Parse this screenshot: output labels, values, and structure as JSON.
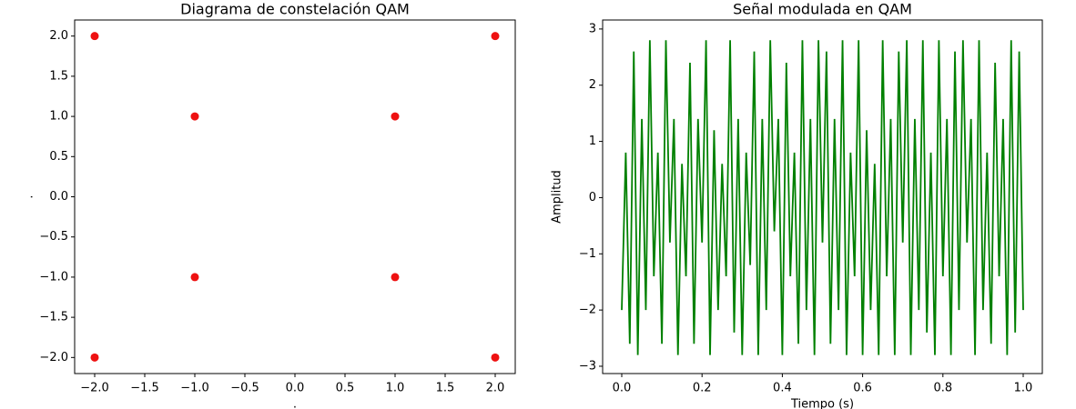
{
  "chart_data": [
    {
      "type": "scatter",
      "title": "Diagrama de constelación QAM",
      "x_label": ".",
      "y_label": ".",
      "x": [
        -2,
        -2,
        -1,
        -1,
        1,
        1,
        2,
        2
      ],
      "values": [
        2,
        -2,
        1,
        -1,
        1,
        -1,
        2,
        -2
      ],
      "color": "#ee1111",
      "xlim": [
        -2.2,
        2.2
      ],
      "ylim": [
        -2.2,
        2.2
      ],
      "xticks": [
        {
          "value": -2,
          "label": "−2.0"
        },
        {
          "value": -1.5,
          "label": "−1.5"
        },
        {
          "value": -1,
          "label": "−1.0"
        },
        {
          "value": -0.5,
          "label": "−0.5"
        },
        {
          "value": 0,
          "label": "0.0"
        },
        0.5,
        {
          "value": 1,
          "label": "1.0"
        },
        1.5,
        {
          "value": 2,
          "label": "2.0"
        }
      ],
      "yticks": [
        {
          "value": -2,
          "label": "−2.0"
        },
        {
          "value": -1.5,
          "label": "−1.5"
        },
        {
          "value": -1,
          "label": "−1.0"
        },
        {
          "value": -0.5,
          "label": "−0.5"
        },
        {
          "value": 0,
          "label": "0.0"
        },
        0.5,
        {
          "value": 1,
          "label": "1.0"
        },
        1.5,
        {
          "value": 2,
          "label": "2.0"
        }
      ]
    },
    {
      "type": "line",
      "title": "Señal modulada en QAM",
      "x_label": "Tiempo (s)",
      "y_label": "Amplitud",
      "color": "#008000",
      "x": [
        0,
        0.01,
        0.02,
        0.03,
        0.04,
        0.05,
        0.06,
        0.07,
        0.08,
        0.09,
        0.1,
        0.11,
        0.12,
        0.13,
        0.14,
        0.15,
        0.16,
        0.17,
        0.18,
        0.19,
        0.2,
        0.21,
        0.22,
        0.23,
        0.24,
        0.25,
        0.26,
        0.27,
        0.28,
        0.29,
        0.3,
        0.31,
        0.32,
        0.33,
        0.34,
        0.35,
        0.36,
        0.37,
        0.38,
        0.39,
        0.4,
        0.41,
        0.42,
        0.43,
        0.44,
        0.45,
        0.46,
        0.47,
        0.48,
        0.49,
        0.5,
        0.51,
        0.52,
        0.53,
        0.54,
        0.55,
        0.56,
        0.57,
        0.58,
        0.59,
        0.6,
        0.61,
        0.62,
        0.63,
        0.64,
        0.65,
        0.66,
        0.67,
        0.68,
        0.69,
        0.7,
        0.71,
        0.72,
        0.73,
        0.74,
        0.75,
        0.76,
        0.77,
        0.78,
        0.79,
        0.8,
        0.81,
        0.82,
        0.83,
        0.84,
        0.85,
        0.86,
        0.87,
        0.88,
        0.89,
        0.9,
        0.91,
        0.92,
        0.93,
        0.94,
        0.95,
        0.96,
        0.97,
        0.98,
        0.99,
        1
      ],
      "values": [
        -2,
        0.8,
        -2.6,
        2.6,
        -2.8,
        1.4,
        -2,
        2.8,
        -1.4,
        0.8,
        -2.6,
        2.8,
        -0.8,
        1.4,
        -2.8,
        0.6,
        -1.4,
        2.4,
        -2.6,
        1.4,
        -0.8,
        2.8,
        -2.8,
        1.2,
        -2,
        0.6,
        -1.4,
        2.8,
        -2.4,
        1.4,
        -2.8,
        0.8,
        -1.2,
        2.6,
        -2.8,
        1.4,
        -2,
        2.8,
        -0.6,
        1.4,
        -2.8,
        2.4,
        -1.4,
        0.8,
        -2.6,
        2.8,
        -2,
        1.4,
        -2.8,
        2.8,
        -0.8,
        2.6,
        -2.6,
        1.4,
        -2,
        2.8,
        -2.8,
        0.8,
        -1.4,
        2.8,
        -2.8,
        1.2,
        -2,
        0.6,
        -2.8,
        2.8,
        -1.4,
        1.4,
        -2.8,
        2.6,
        -0.8,
        2.8,
        -2.8,
        1.4,
        -2,
        2.8,
        -2.4,
        0.8,
        -2.8,
        2.8,
        -1.4,
        1.4,
        -2.8,
        2.6,
        -2,
        2.8,
        -0.8,
        1.4,
        -2.8,
        2.8,
        -2,
        0.8,
        -2.6,
        2.4,
        -1.4,
        1.4,
        -2.8,
        2.8,
        -2.4,
        2.6,
        -2
      ],
      "xlim": [
        -0.0476,
        1.0476
      ],
      "ylim": [
        -3.13,
        3.16
      ],
      "xticks": [
        {
          "value": 0,
          "label": "0.0"
        },
        0.2,
        0.4,
        0.6,
        0.8,
        {
          "value": 1,
          "label": "1.0"
        }
      ],
      "yticks": [
        {
          "value": -3,
          "label": "−3"
        },
        {
          "value": -2,
          "label": "−2"
        },
        {
          "value": -1,
          "label": "−1"
        },
        0,
        1,
        2,
        3
      ]
    }
  ]
}
